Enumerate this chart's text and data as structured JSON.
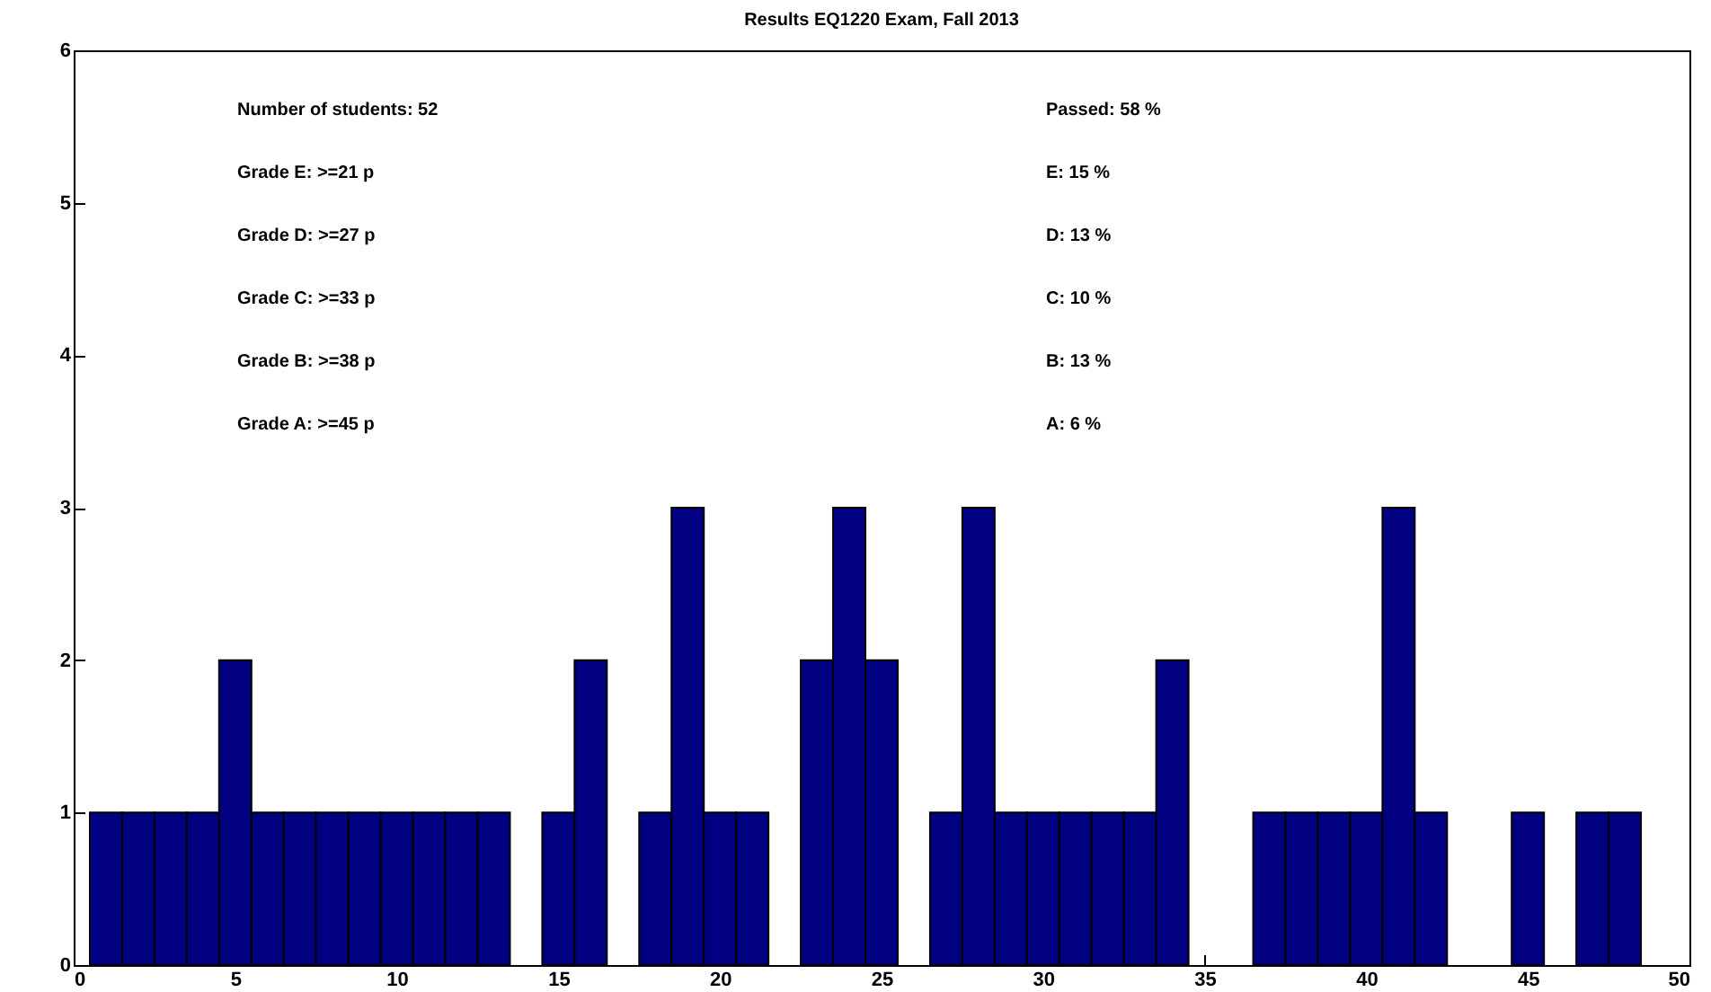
{
  "chart_data": {
    "type": "histogram",
    "title": "Results EQ1220 Exam, Fall 2013",
    "bins": [
      0.5,
      1.5,
      2.5,
      3.5,
      4.5,
      5.5,
      6.5,
      7.5,
      8.5,
      9.5,
      10.5,
      11.5,
      12.5,
      13.5,
      14.5,
      15.5,
      16.5,
      17.5,
      18.5,
      19.5,
      20.5,
      21.5,
      22.5,
      23.5,
      24.5,
      25.5,
      26.5,
      27.5,
      28.5,
      29.5,
      30.5,
      31.5,
      32.5,
      33.5,
      34.5,
      35.5,
      36.5,
      37.5,
      38.5,
      39.5,
      40.5,
      41.5,
      42.5,
      43.5,
      44.5,
      45.5,
      46.5,
      47.5,
      48.5
    ],
    "values": [
      1,
      1,
      1,
      1,
      2,
      1,
      1,
      1,
      1,
      1,
      1,
      1,
      1,
      0,
      1,
      2,
      0,
      1,
      3,
      1,
      1,
      0,
      2,
      3,
      2,
      0,
      1,
      3,
      1,
      1,
      1,
      1,
      1,
      2,
      0,
      0,
      1,
      1,
      1,
      1,
      3,
      1,
      0,
      0,
      1,
      0,
      1,
      1
    ],
    "color": "#000080",
    "xlim": [
      0,
      50
    ],
    "xticks": [
      0,
      5,
      10,
      15,
      20,
      25,
      30,
      35,
      40,
      45,
      50
    ],
    "ylim": [
      0,
      6
    ],
    "yticks": [
      0,
      1,
      2,
      3,
      4,
      5,
      6
    ],
    "annotations": [
      "Number of students: 52",
      "Grade E: >=21 p",
      "Grade D: >=27 p",
      "Grade C: >=33 p",
      "Grade B: >=38 p",
      "Grade A: >=45 p",
      "Passed: 58 %",
      "E: 15 %",
      "D: 13 %",
      "C: 10 %",
      "B: 13 %",
      "A: 6 %"
    ],
    "grid": false
  }
}
